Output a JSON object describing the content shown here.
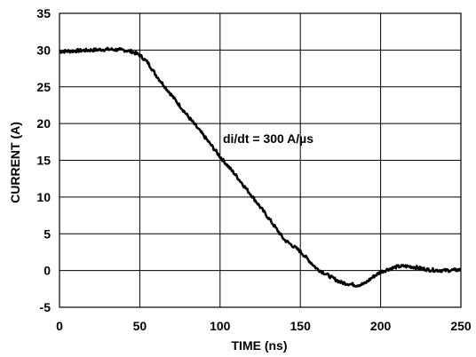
{
  "chart_data": {
    "type": "line",
    "title": "",
    "xlabel": "TIME (ns)",
    "ylabel": "CURRENT (A)",
    "xlim": [
      0,
      250
    ],
    "ylim": [
      -5,
      35
    ],
    "x_ticks": [
      0,
      50,
      100,
      150,
      200,
      250
    ],
    "y_ticks": [
      -5,
      0,
      5,
      10,
      15,
      20,
      25,
      30,
      35
    ],
    "grid": true,
    "annotation": "di/dt = 300 A/µs",
    "series": [
      {
        "x": [
          0,
          10,
          20,
          30,
          40,
          45,
          50,
          55,
          60,
          70,
          80,
          90,
          100,
          110,
          120,
          130,
          140,
          150,
          160,
          170,
          175,
          180,
          185,
          190,
          195,
          200,
          205,
          210,
          215,
          220,
          225,
          230,
          240,
          250
        ],
        "y": [
          29.8,
          29.9,
          30.0,
          30.1,
          30.0,
          29.8,
          29.3,
          28.3,
          26.6,
          23.8,
          21.0,
          18.3,
          15.5,
          12.9,
          10.1,
          7.2,
          4.2,
          2.6,
          0.3,
          -1.0,
          -1.6,
          -1.8,
          -2.0,
          -1.8,
          -0.9,
          -0.2,
          0.2,
          0.5,
          0.6,
          0.5,
          0.3,
          0.1,
          0.0,
          0.1
        ]
      }
    ]
  }
}
